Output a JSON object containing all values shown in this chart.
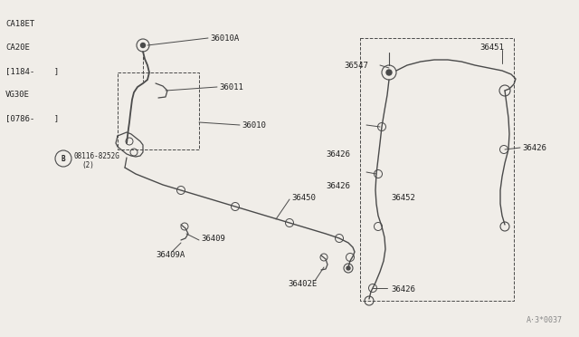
{
  "bg_color": "#f0ede8",
  "line_color": "#4a4a4a",
  "text_color": "#222222",
  "watermark": "A·3*0037",
  "left_labels": [
    "CA18ET",
    "CA20E",
    "[1184-    ]",
    "VG30E",
    "[0786-    ]"
  ],
  "font_size_labels": 6.5,
  "font_size_side": 6.5,
  "font_size_watermark": 6.0
}
